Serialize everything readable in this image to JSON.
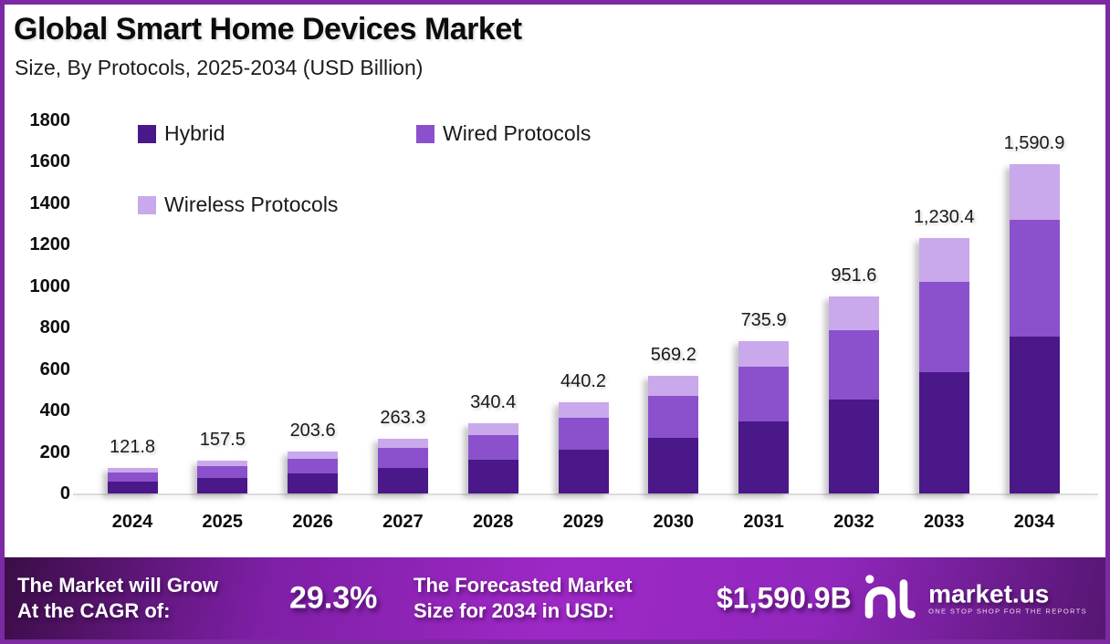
{
  "header": {
    "title": "Global Smart Home Devices Market",
    "subtitle": "Size, By Protocols, 2025-2034 (USD Billion)"
  },
  "chart_data": {
    "type": "bar",
    "stacked": true,
    "title": "Global Smart Home Devices Market Size, By Protocols, 2025-2034 (USD Billion)",
    "categories": [
      "2024",
      "2025",
      "2026",
      "2027",
      "2028",
      "2029",
      "2030",
      "2031",
      "2032",
      "2033",
      "2034"
    ],
    "series": [
      {
        "name": "Hybrid",
        "color": "#4a1888",
        "values": [
          57.9,
          74.8,
          96.7,
          125.1,
          161.7,
          209.1,
          270.4,
          349.6,
          452.0,
          584.4,
          755.7
        ]
      },
      {
        "name": "Wired Protocols",
        "color": "#8b51cc",
        "values": [
          43.2,
          55.9,
          72.3,
          93.5,
          120.8,
          156.3,
          202.1,
          261.2,
          337.8,
          436.8,
          564.8
        ]
      },
      {
        "name": "Wireless Protocols",
        "color": "#c9a8ec",
        "values": [
          20.7,
          26.8,
          34.6,
          44.7,
          57.9,
          74.8,
          96.7,
          125.1,
          161.8,
          209.2,
          270.4
        ]
      }
    ],
    "totals": [
      121.8,
      157.5,
      203.6,
      263.3,
      340.4,
      440.2,
      569.2,
      735.9,
      951.6,
      1230.4,
      1590.9
    ],
    "total_labels": [
      "121.8",
      "157.5",
      "203.6",
      "263.3",
      "340.4",
      "440.2",
      "569.2",
      "735.9",
      "951.6",
      "1,230.4",
      "1,590.9"
    ],
    "xlabel": "",
    "ylabel": "",
    "ylim": [
      0,
      1800
    ],
    "ytick_step": 200,
    "grid": false,
    "legend_position": "top-left-inside"
  },
  "banner": {
    "cagr_label_line1": "The Market will Grow",
    "cagr_label_line2": "At the CAGR of:",
    "cagr_value": "29.3%",
    "forecast_label_line1": "The Forecasted Market",
    "forecast_label_line2": "Size for 2034 in USD:",
    "forecast_value": "$1,590.9B",
    "brand_name": "market.us",
    "brand_tagline": "ONE STOP SHOP FOR THE REPORTS"
  },
  "colors": {
    "frame_border": "#7c2aa2",
    "axis_line": "#dcdcdc",
    "text": "#0c0c0c",
    "banner_text": "#ffffff",
    "banner_gradient": [
      "#3b0d46",
      "#9e28c6",
      "#561672"
    ]
  }
}
